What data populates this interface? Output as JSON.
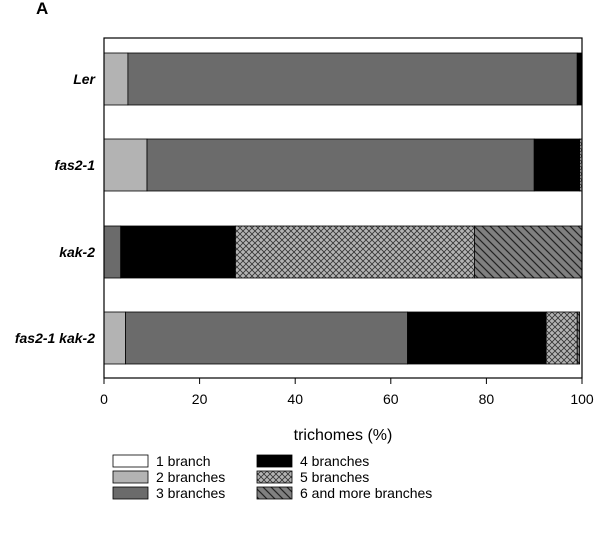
{
  "panel_label": "A",
  "chart_data": {
    "type": "bar",
    "orientation": "horizontal",
    "stacked": true,
    "categories": [
      "Ler",
      "fas2-1",
      "kak-2",
      "fas2-1 kak-2"
    ],
    "series": [
      {
        "name": "1 branch",
        "values": [
          0,
          0,
          0,
          0
        ],
        "fill": "#ffffff",
        "pattern": "none"
      },
      {
        "name": "2 branches",
        "values": [
          5,
          9,
          0,
          4.5
        ],
        "fill": "#b3b3b3",
        "pattern": "none"
      },
      {
        "name": "3 branches",
        "values": [
          94,
          81,
          3.5,
          59
        ],
        "fill": "#6b6b6b",
        "pattern": "none"
      },
      {
        "name": "4 branches",
        "values": [
          1,
          9.5,
          24,
          29
        ],
        "fill": "#000000",
        "pattern": "none"
      },
      {
        "name": "5 branches",
        "values": [
          0,
          0.5,
          50,
          6.5
        ],
        "fill": "#b3b3b3",
        "pattern": "crosshatch"
      },
      {
        "name": "6 and more branches",
        "values": [
          0,
          0,
          22.5,
          0.5
        ],
        "fill": "#808080",
        "pattern": "diagonal"
      }
    ],
    "xlabel": "trichomes (%)",
    "ylabel": "",
    "xlim": [
      0,
      100
    ],
    "xticks": [
      0,
      20,
      40,
      60,
      80,
      100
    ],
    "grid": false,
    "legend_position": "bottom"
  }
}
